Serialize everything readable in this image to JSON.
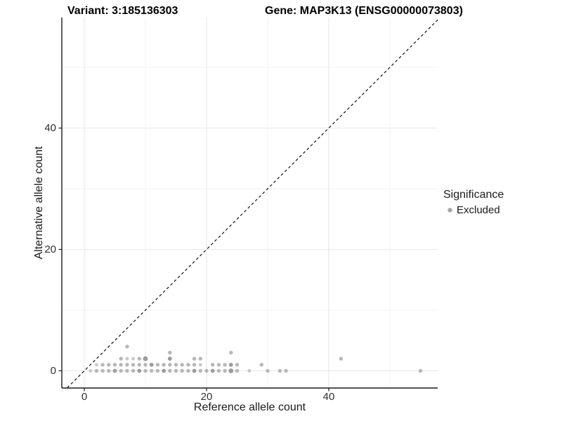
{
  "titles": {
    "variant": "Variant: 3:185136303",
    "gene": "Gene: MAP3K13 (ENSG00000073803)"
  },
  "chart_data": {
    "type": "scatter",
    "title": "Variant: 3:185136303 — Gene: MAP3K13 (ENSG00000073803)",
    "xlabel": "Reference allele count",
    "ylabel": "Alternative allele count",
    "xticks": [
      0,
      20,
      40
    ],
    "yticks": [
      0,
      20,
      40
    ],
    "minor_ticks": [
      10,
      30,
      50
    ],
    "xlim": [
      -3.7,
      57.8
    ],
    "ylim": [
      -2.8,
      58.2
    ],
    "grid": "major+minor",
    "identity_line": {
      "style": "dashed",
      "equation": "y = x",
      "color": "#111111"
    },
    "legend": {
      "position": "right",
      "title": "Significance",
      "items": [
        {
          "label": "Excluded",
          "color": "#a8a8a8"
        }
      ]
    },
    "style": {
      "point": "#b7b7b7",
      "point_dark": "#9c9c9c",
      "point_light": "#c9c9c9",
      "grid_major": "#e8e8e8",
      "grid_minor": "#f3f3f3",
      "axis": "#1a1a1a"
    },
    "series": [
      {
        "name": "Excluded",
        "points": [
          [
            1,
            0,
            "l"
          ],
          [
            2,
            0
          ],
          [
            3,
            0
          ],
          [
            4,
            0
          ],
          [
            5,
            0,
            "d"
          ],
          [
            6,
            0
          ],
          [
            7,
            0
          ],
          [
            8,
            0
          ],
          [
            9,
            0,
            "d"
          ],
          [
            10,
            0
          ],
          [
            11,
            0
          ],
          [
            12,
            0
          ],
          [
            13,
            0,
            "d"
          ],
          [
            14,
            0
          ],
          [
            15,
            0
          ],
          [
            16,
            0
          ],
          [
            17,
            0
          ],
          [
            18,
            0,
            "d"
          ],
          [
            19,
            0
          ],
          [
            20,
            0
          ],
          [
            21,
            0,
            "d"
          ],
          [
            22,
            0
          ],
          [
            23,
            0
          ],
          [
            24,
            0,
            "b"
          ],
          [
            25,
            0
          ],
          [
            27,
            0,
            "l"
          ],
          [
            30,
            0
          ],
          [
            32,
            0
          ],
          [
            33,
            0
          ],
          [
            55,
            0
          ],
          [
            2,
            1,
            "l"
          ],
          [
            3,
            1
          ],
          [
            4,
            1
          ],
          [
            5,
            1
          ],
          [
            6,
            1
          ],
          [
            7,
            1
          ],
          [
            8,
            1
          ],
          [
            9,
            1
          ],
          [
            10,
            1
          ],
          [
            11,
            1,
            "d"
          ],
          [
            12,
            1
          ],
          [
            13,
            1
          ],
          [
            14,
            1
          ],
          [
            15,
            1
          ],
          [
            16,
            1
          ],
          [
            17,
            1
          ],
          [
            18,
            1
          ],
          [
            19,
            1,
            "l"
          ],
          [
            21,
            1
          ],
          [
            22,
            1
          ],
          [
            23,
            1
          ],
          [
            24,
            1,
            "d"
          ],
          [
            25,
            1
          ],
          [
            29,
            1
          ],
          [
            6,
            2
          ],
          [
            7,
            2,
            "l"
          ],
          [
            8,
            2,
            "l"
          ],
          [
            9,
            2
          ],
          [
            10,
            2,
            "b"
          ],
          [
            14,
            2,
            "d"
          ],
          [
            18,
            2
          ],
          [
            19,
            2
          ],
          [
            42,
            2
          ],
          [
            14,
            3
          ],
          [
            24,
            3
          ],
          [
            7,
            4
          ]
        ]
      }
    ]
  }
}
